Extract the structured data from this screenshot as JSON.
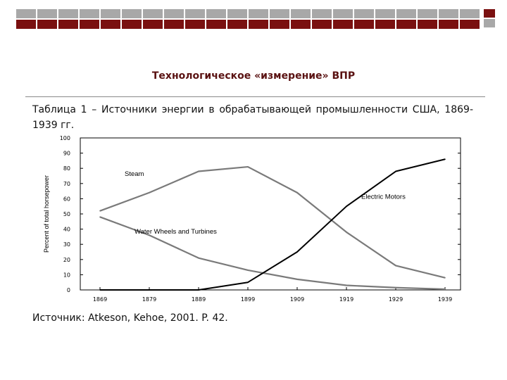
{
  "slide": {
    "title": "Технологическое «измерение» ВПР",
    "caption": "Таблица 1 – Источники энергии в обрабатывающей промышленности США, 1869-1939 гг.",
    "source": "Источник: Atkeson, Kehoe, 2001. P. 42."
  },
  "colors": {
    "title": "#5a1212",
    "bar_top": "#a8a8a8",
    "bar_bottom": "#7a1010"
  },
  "chart_data": {
    "type": "line",
    "title": "",
    "xlabel": "",
    "ylabel": "Percent of total horsepower",
    "x": [
      1869,
      1879,
      1889,
      1899,
      1909,
      1919,
      1929,
      1939
    ],
    "xticks": [
      "1869",
      "1879",
      "1889",
      "1899",
      "1909",
      "1919",
      "1929",
      "1939"
    ],
    "yticks": [
      "0",
      "10",
      "20",
      "30",
      "40",
      "50",
      "60",
      "70",
      "80",
      "90",
      "100"
    ],
    "ylim": [
      0,
      100
    ],
    "grid": false,
    "series": [
      {
        "name": "Steam",
        "color": "#7a7a7a",
        "values": [
          52,
          64,
          78,
          81,
          64,
          38,
          16,
          8
        ]
      },
      {
        "name": "Water Wheels and Turbines",
        "color": "#7a7a7a",
        "values": [
          48,
          36,
          21,
          13,
          7,
          3,
          1.5,
          0.5
        ]
      },
      {
        "name": "Electric Motors",
        "color": "#000000",
        "values": [
          0,
          0,
          0,
          5,
          25,
          55,
          78,
          86
        ]
      }
    ]
  }
}
